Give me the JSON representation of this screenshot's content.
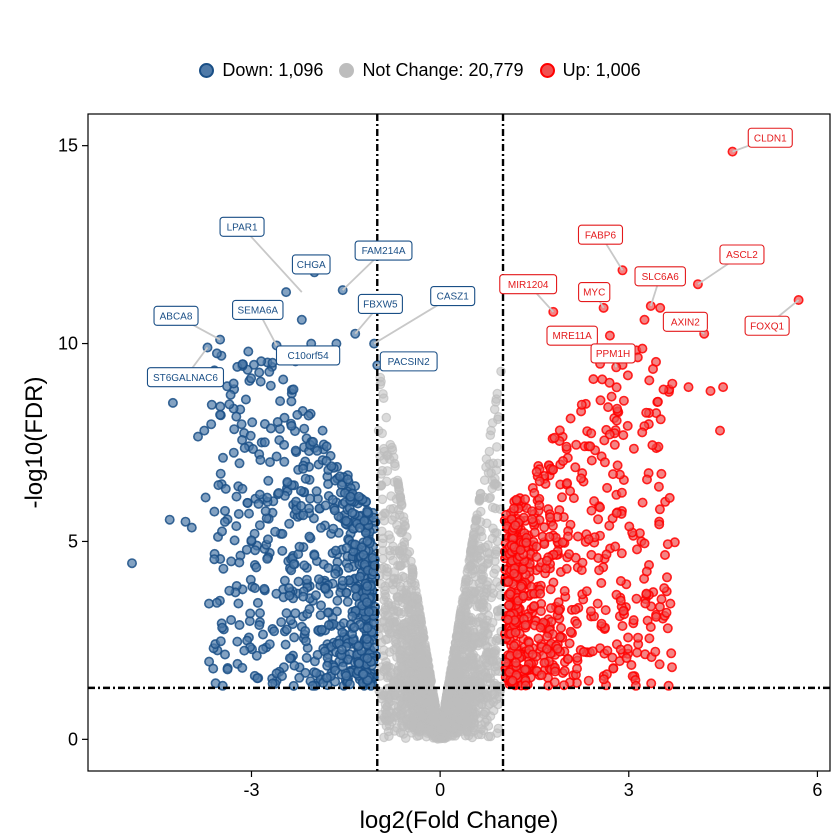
{
  "chart_data": {
    "type": "scatter",
    "title": "",
    "xlabel": "log2(Fold Change)",
    "ylabel": "-log10(FDR)",
    "xlim": [
      -5.6,
      6.2
    ],
    "ylim": [
      -0.8,
      15.8
    ],
    "x_ticks": [
      -3,
      0,
      3,
      6
    ],
    "y_ticks": [
      0,
      5,
      10,
      15
    ],
    "x_tick_labels": [
      "-3",
      "0",
      "3",
      "6"
    ],
    "y_tick_labels": [
      "0",
      "5",
      "10",
      "15"
    ],
    "grid": false,
    "legend_position": "top",
    "thresholds": {
      "log2fc": [
        -1,
        1
      ],
      "fdr_line": 1.3
    },
    "series": [
      {
        "name": "Down",
        "label": "Down: 1,096",
        "count": 1096,
        "color": "#1a4f86",
        "fill": "#4f7aa8"
      },
      {
        "name": "Not Change",
        "label": "Not Change: 20,779",
        "count": 20779,
        "color": "#bdbdbd",
        "fill": "#bdbdbd"
      },
      {
        "name": "Up",
        "label": "Up: 1,006",
        "count": 1006,
        "color": "#ff0000",
        "fill": "#f05050"
      }
    ],
    "highlight_points_down": [
      {
        "x": -4.9,
        "y": 4.45
      },
      {
        "x": -4.3,
        "y": 5.55
      },
      {
        "x": -4.05,
        "y": 5.5
      },
      {
        "x": -3.95,
        "y": 5.35
      },
      {
        "x": -4.25,
        "y": 8.5
      },
      {
        "x": -3.85,
        "y": 7.65
      },
      {
        "x": -3.75,
        "y": 7.8
      },
      {
        "x": -3.5,
        "y": 8.2
      },
      {
        "x": -3.7,
        "y": 9.9
      },
      {
        "x": -3.55,
        "y": 9.75
      },
      {
        "x": -3.5,
        "y": 10.1
      },
      {
        "x": -3.05,
        "y": 9.8
      },
      {
        "x": -2.45,
        "y": 11.3
      },
      {
        "x": -2.2,
        "y": 10.6
      },
      {
        "x": -2.05,
        "y": 10.0
      },
      {
        "x": -2.0,
        "y": 11.8
      },
      {
        "x": -1.55,
        "y": 11.35
      },
      {
        "x": -1.35,
        "y": 10.25
      },
      {
        "x": -1.65,
        "y": 10.0
      },
      {
        "x": -1.05,
        "y": 10.0
      },
      {
        "x": -1.0,
        "y": 9.45
      },
      {
        "x": -2.3,
        "y": 9.55
      },
      {
        "x": -2.6,
        "y": 9.95
      },
      {
        "x": -3.55,
        "y": 3.45
      }
    ],
    "highlight_points_up": [
      {
        "x": 4.65,
        "y": 14.85
      },
      {
        "x": 2.9,
        "y": 11.85
      },
      {
        "x": 4.1,
        "y": 11.5
      },
      {
        "x": 3.5,
        "y": 10.9
      },
      {
        "x": 2.6,
        "y": 10.9
      },
      {
        "x": 3.25,
        "y": 10.6
      },
      {
        "x": 5.7,
        "y": 11.1
      },
      {
        "x": 4.2,
        "y": 10.25
      },
      {
        "x": 1.8,
        "y": 10.8
      },
      {
        "x": 3.35,
        "y": 10.95
      },
      {
        "x": 3.95,
        "y": 8.9
      },
      {
        "x": 4.3,
        "y": 8.8
      },
      {
        "x": 4.5,
        "y": 8.9
      },
      {
        "x": 4.45,
        "y": 7.8
      },
      {
        "x": 3.65,
        "y": 6.1
      },
      {
        "x": 3.6,
        "y": 3.2
      },
      {
        "x": 3.2,
        "y": 5.0
      },
      {
        "x": 3.25,
        "y": 4.95
      },
      {
        "x": 2.7,
        "y": 10.2
      },
      {
        "x": 2.8,
        "y": 9.4
      }
    ],
    "labeled_genes": [
      {
        "gene": "CLDN1",
        "group": "Up",
        "x": 4.65,
        "y": 14.85,
        "lx": 5.25,
        "ly": 15.2
      },
      {
        "gene": "FABP6",
        "group": "Up",
        "x": 2.9,
        "y": 11.85,
        "lx": 2.55,
        "ly": 12.75
      },
      {
        "gene": "ASCL2",
        "group": "Up",
        "x": 4.1,
        "y": 11.5,
        "lx": 4.8,
        "ly": 12.25
      },
      {
        "gene": "SLC6A6",
        "group": "Up",
        "x": 3.35,
        "y": 10.95,
        "lx": 3.5,
        "ly": 11.7
      },
      {
        "gene": "MYC",
        "group": "Up",
        "x": 2.6,
        "y": 10.9,
        "lx": 2.45,
        "ly": 11.3
      },
      {
        "gene": "MIR1204",
        "group": "Up",
        "x": 1.8,
        "y": 10.8,
        "lx": 1.4,
        "ly": 11.5
      },
      {
        "gene": "AXIN2",
        "group": "Up",
        "x": 4.2,
        "y": 10.25,
        "lx": 3.9,
        "ly": 10.55
      },
      {
        "gene": "FOXQ1",
        "group": "Up",
        "x": 5.7,
        "y": 11.1,
        "lx": 5.2,
        "ly": 10.45
      },
      {
        "gene": "MRE11A",
        "group": "Up",
        "x": 1.95,
        "y": 10.1,
        "lx": 2.1,
        "ly": 10.2
      },
      {
        "gene": "PPM1H",
        "group": "Up",
        "x": 2.8,
        "y": 9.4,
        "lx": 2.75,
        "ly": 9.75
      },
      {
        "gene": "LPAR1",
        "group": "Down",
        "x": -2.2,
        "y": 11.3,
        "lx": -3.15,
        "ly": 12.95
      },
      {
        "gene": "CHGA",
        "group": "Down",
        "x": -2.05,
        "y": 11.8,
        "lx": -2.05,
        "ly": 12.0
      },
      {
        "gene": "FAM214A",
        "group": "Down",
        "x": -1.55,
        "y": 11.35,
        "lx": -0.9,
        "ly": 12.35
      },
      {
        "gene": "FBXW5",
        "group": "Down",
        "x": -1.35,
        "y": 10.25,
        "lx": -0.95,
        "ly": 11.0
      },
      {
        "gene": "CASZ1",
        "group": "Down",
        "x": -1.05,
        "y": 10.0,
        "lx": 0.2,
        "ly": 11.2
      },
      {
        "gene": "SEMA6A",
        "group": "Down",
        "x": -2.6,
        "y": 9.95,
        "lx": -2.9,
        "ly": 10.85
      },
      {
        "gene": "ABCA8",
        "group": "Down",
        "x": -3.5,
        "y": 10.1,
        "lx": -4.2,
        "ly": 10.7
      },
      {
        "gene": "C10orf54",
        "group": "Down",
        "x": -2.3,
        "y": 9.55,
        "lx": -2.1,
        "ly": 9.7
      },
      {
        "gene": "ST6GALNAC6",
        "group": "Down",
        "x": -3.7,
        "y": 9.9,
        "lx": -4.05,
        "ly": 9.15
      },
      {
        "gene": "PACSIN2",
        "group": "Down",
        "x": -1.0,
        "y": 9.45,
        "lx": -0.5,
        "ly": 9.55
      }
    ]
  }
}
